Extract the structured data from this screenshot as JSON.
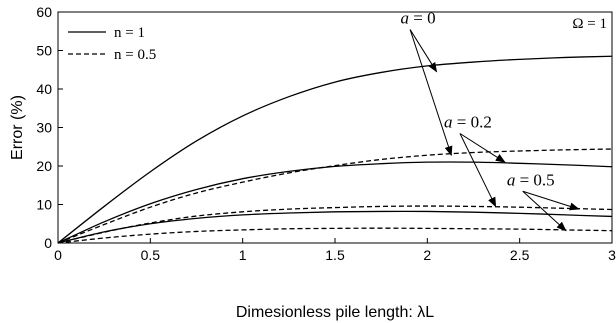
{
  "chart_data": {
    "type": "line",
    "xlabel": "Dimesionless pile length: λL",
    "ylabel": "Error (%)",
    "xlim": [
      0,
      3
    ],
    "ylim": [
      0,
      60
    ],
    "xticks": [
      "0",
      "0.5",
      "1",
      "1.5",
      "2",
      "2.5",
      "3"
    ],
    "yticks": [
      "0",
      "10",
      "20",
      "30",
      "40",
      "50",
      "60"
    ],
    "grid": false,
    "legend": {
      "placement": "top-left",
      "entries": [
        {
          "label": "n = 1",
          "style": "solid"
        },
        {
          "label": "n = 0.5",
          "style": "dashed"
        }
      ]
    },
    "corner_note": "Ω = 1",
    "x": [
      0,
      0.25,
      0.5,
      0.75,
      1.0,
      1.25,
      1.5,
      1.75,
      2.0,
      2.25,
      2.5,
      2.75,
      3.0
    ],
    "series": [
      {
        "a": "0",
        "n": "1",
        "style": "solid",
        "values": [
          0,
          9.5,
          18.5,
          26.5,
          33.0,
          38.0,
          41.8,
          44.3,
          46.0,
          47.0,
          47.7,
          48.2,
          48.5
        ]
      },
      {
        "a": "0",
        "n": "0.5",
        "style": "dashed",
        "values": [
          0,
          4.8,
          9.3,
          13.0,
          15.8,
          18.2,
          20.1,
          21.7,
          22.8,
          23.5,
          23.9,
          24.2,
          24.4
        ]
      },
      {
        "a": "0.2",
        "n": "1",
        "style": "solid",
        "values": [
          0,
          5.5,
          10.2,
          13.9,
          16.7,
          18.6,
          19.9,
          20.6,
          21.0,
          21.0,
          20.7,
          20.3,
          19.8
        ]
      },
      {
        "a": "0.2",
        "n": "0.5",
        "style": "dashed",
        "values": [
          0,
          2.8,
          5.2,
          7.0,
          8.1,
          8.8,
          9.2,
          9.5,
          9.6,
          9.5,
          9.3,
          9.0,
          8.7
        ]
      },
      {
        "a": "0.5",
        "n": "1",
        "style": "solid",
        "values": [
          0,
          2.9,
          5.0,
          6.4,
          7.3,
          7.8,
          8.1,
          8.2,
          8.2,
          8.0,
          7.7,
          7.3,
          6.9
        ]
      },
      {
        "a": "0.5",
        "n": "0.5",
        "style": "dashed",
        "values": [
          0,
          1.3,
          2.3,
          3.0,
          3.4,
          3.7,
          3.8,
          3.85,
          3.8,
          3.7,
          3.6,
          3.4,
          3.2
        ]
      }
    ],
    "annotations": [
      {
        "a_label": "a",
        "eq": "=",
        "value": "0",
        "anchor": [
          1.95,
          57.0
        ],
        "targets": [
          [
            2.05,
            44.5
          ],
          [
            2.13,
            22.8
          ]
        ]
      },
      {
        "a_label": "a",
        "eq": "=",
        "value": "0.2",
        "anchor": [
          2.22,
          30.0
        ],
        "targets": [
          [
            2.42,
            21.0
          ],
          [
            2.37,
            9.5
          ]
        ]
      },
      {
        "a_label": "a",
        "eq": "=",
        "value": "0.5",
        "anchor": [
          2.56,
          15.0
        ],
        "targets": [
          [
            2.82,
            8.8
          ],
          [
            2.75,
            3.2
          ]
        ]
      }
    ]
  }
}
